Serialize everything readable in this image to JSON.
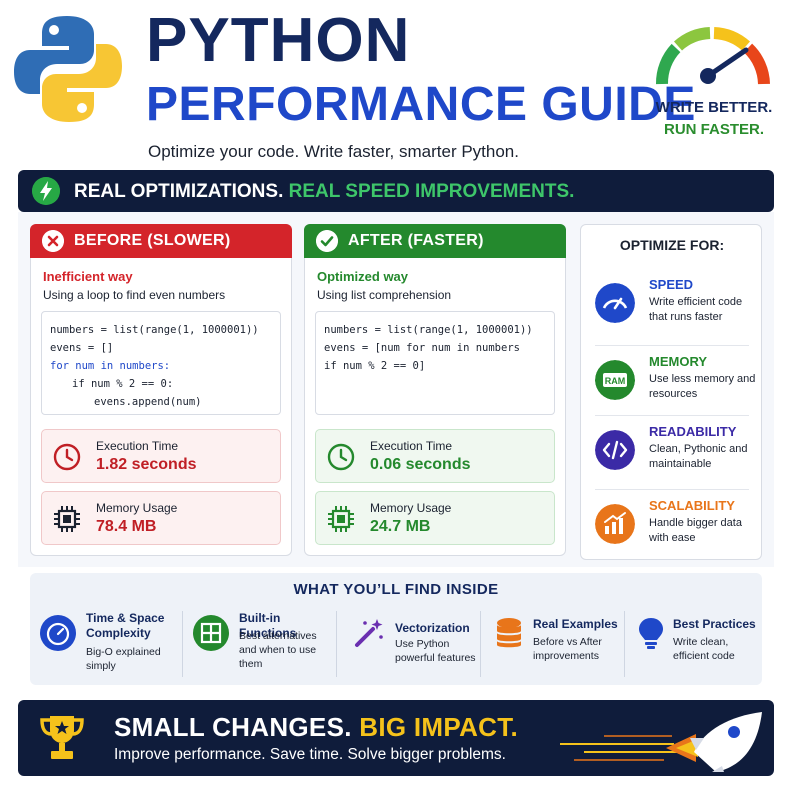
{
  "header": {
    "title_line1": "PYTHON",
    "title_line2": "PERFORMANCE GUIDE",
    "subtitle": "Optimize your code. Write faster, smarter Python.",
    "tagline_line1": "WRITE BETTER.",
    "tagline_line2": "RUN FASTER.",
    "logo_icon": "python-logo",
    "gauge_icon": "speedometer-icon"
  },
  "banner": {
    "icon": "lightning-bolt-icon",
    "text_white": "REAL OPTIMIZATIONS.",
    "text_green": "REAL SPEED IMPROVEMENTS."
  },
  "before": {
    "header": "BEFORE (SLOWER)",
    "header_icon": "x-circle-icon",
    "way": "Inefficient way",
    "description": "Using a loop to find even numbers",
    "code_lines": [
      "numbers = list(range(1, 1000001))",
      "evens = []",
      "for num in numbers:",
      "if num % 2 == 0:",
      "evens.append(num)"
    ],
    "execution_label": "Execution Time",
    "execution_value": "1.82 seconds",
    "memory_label": "Memory Usage",
    "memory_value": "78.4 MB"
  },
  "after": {
    "header": "AFTER (FASTER)",
    "header_icon": "check-circle-icon",
    "way": "Optimized way",
    "description": "Using list comprehension",
    "code_lines": [
      "numbers = list(range(1, 1000001))",
      "evens = [num for num in numbers",
      "if num % 2 == 0]"
    ],
    "execution_label": "Execution Time",
    "execution_value": "0.06 seconds",
    "memory_label": "Memory Usage",
    "memory_value": "24.7 MB"
  },
  "optimize_for": {
    "title": "OPTIMIZE FOR:",
    "items": [
      {
        "name": "SPEED",
        "description": "Write efficient code that runs faster",
        "icon": "speedometer-icon",
        "color": "#1f48c9"
      },
      {
        "name": "MEMORY",
        "description": "Use less memory and resources",
        "icon": "ram-chip-icon",
        "color": "#24892d",
        "icon_text": "RAM"
      },
      {
        "name": "READABILITY",
        "description": "Clean, Pythonic and maintainable",
        "icon": "code-brackets-icon",
        "color": "#3b2aa6"
      },
      {
        "name": "SCALABILITY",
        "description": "Handle bigger data with ease",
        "icon": "growth-chart-icon",
        "color": "#e8751a"
      }
    ]
  },
  "inside": {
    "title": "WHAT YOU’LL FIND INSIDE",
    "features": [
      {
        "name": "Time & Space Complexity",
        "description": "Big-O explained simply",
        "icon": "clock-gauge-icon"
      },
      {
        "name": "Built-in Functions",
        "description": "Best alternatives and when to use them",
        "icon": "grid-icon"
      },
      {
        "name": "Vectorization",
        "description": "Use Python powerful features",
        "icon": "magic-wand-icon"
      },
      {
        "name": "Real Examples",
        "description": "Before vs After improvements",
        "icon": "database-icon"
      },
      {
        "name": "Best Practices",
        "description": "Write clean, efficient code",
        "icon": "lightbulb-icon"
      }
    ]
  },
  "footer": {
    "headline_white": "SMALL CHANGES.",
    "headline_yellow": "BIG IMPACT.",
    "subtext": "Improve performance. Save time. Solve bigger problems.",
    "trophy_icon": "trophy-icon",
    "rocket_icon": "rocket-icon"
  },
  "colors": {
    "navy": "#14285e",
    "blue": "#1f48c9",
    "red": "#d4242a",
    "green": "#24892d",
    "dark_banner": "#0f1c3b",
    "yellow": "#f5c21b"
  }
}
